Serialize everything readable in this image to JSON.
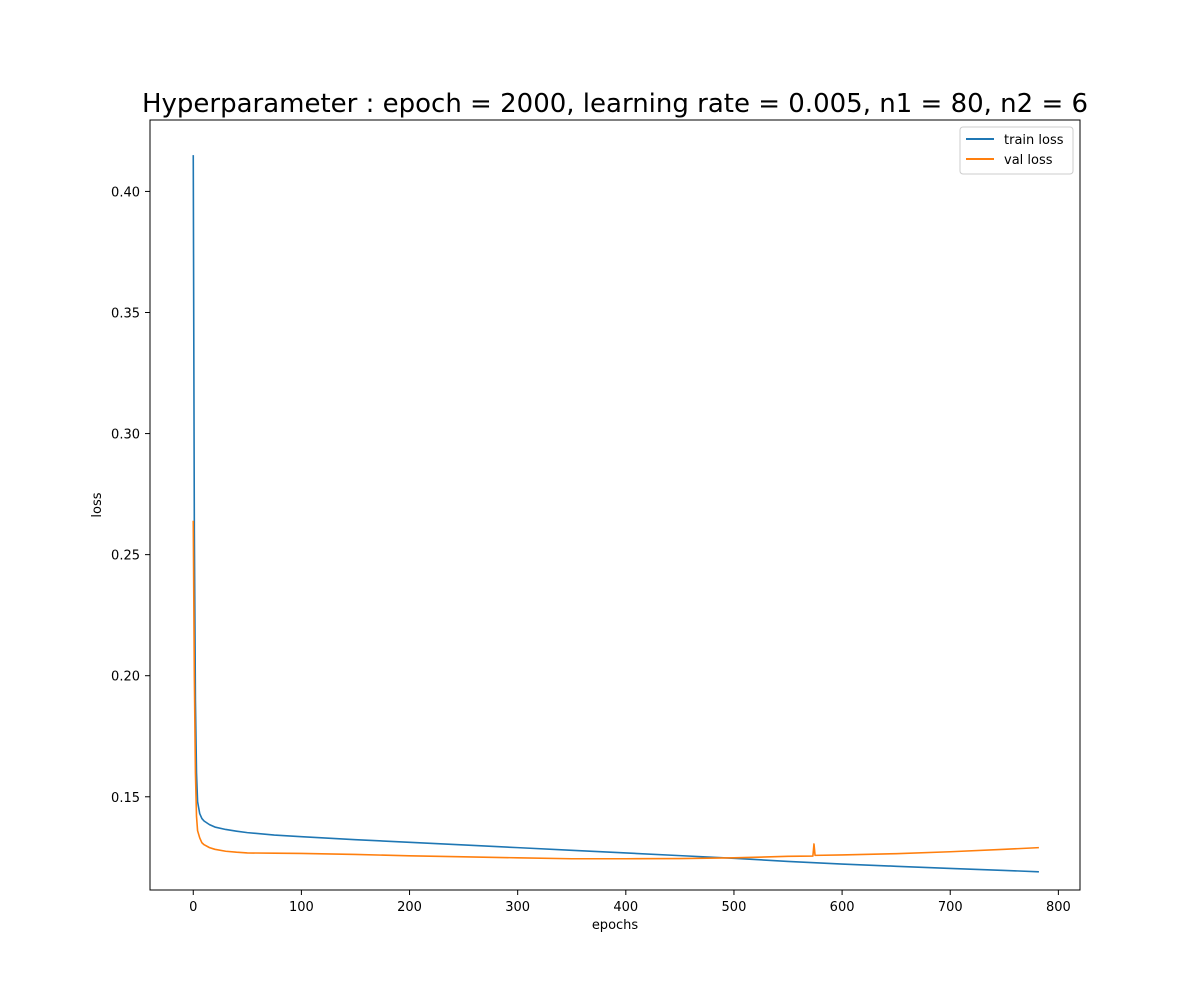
{
  "chart_data": {
    "type": "line",
    "title": "Hyperparameter : epoch = 2000, learning rate = 0.005, n1 = 80, n2 = 6",
    "xlabel": "epochs",
    "ylabel": "loss",
    "xlim": [
      -40,
      820
    ],
    "ylim": [
      0.1115,
      0.4295
    ],
    "xticks": [
      0,
      100,
      200,
      300,
      400,
      500,
      600,
      700,
      800
    ],
    "yticks": [
      0.15,
      0.2,
      0.25,
      0.3,
      0.35,
      0.4
    ],
    "xtick_labels": [
      "0",
      "100",
      "200",
      "300",
      "400",
      "500",
      "600",
      "700",
      "800"
    ],
    "ytick_labels": [
      "0.15",
      "0.20",
      "0.25",
      "0.30",
      "0.35",
      "0.40"
    ],
    "grid": false,
    "legend_position": "upper right",
    "series": [
      {
        "name": "train loss",
        "color": "#1f77b4",
        "x": [
          0,
          1,
          2,
          3,
          4,
          6,
          8,
          10,
          15,
          20,
          30,
          40,
          50,
          75,
          100,
          150,
          200,
          250,
          300,
          350,
          400,
          450,
          500,
          550,
          600,
          650,
          700,
          750,
          782
        ],
        "y": [
          0.415,
          0.26,
          0.19,
          0.16,
          0.148,
          0.143,
          0.141,
          0.14,
          0.1385,
          0.1375,
          0.1365,
          0.1358,
          0.1352,
          0.1342,
          0.1335,
          0.1323,
          0.1312,
          0.1301,
          0.129,
          0.1279,
          0.1268,
          0.1257,
          0.1246,
          0.1233,
          0.1222,
          0.1213,
          0.1204,
          0.1196,
          0.119
        ]
      },
      {
        "name": "val loss",
        "color": "#ff7f0e",
        "x": [
          0,
          1,
          2,
          3,
          4,
          6,
          8,
          10,
          15,
          20,
          30,
          40,
          50,
          75,
          100,
          150,
          200,
          250,
          300,
          350,
          400,
          450,
          500,
          550,
          573,
          574,
          575,
          600,
          650,
          700,
          750,
          782
        ],
        "y": [
          0.264,
          0.2,
          0.16,
          0.142,
          0.136,
          0.133,
          0.131,
          0.1302,
          0.129,
          0.1283,
          0.1275,
          0.1271,
          0.1268,
          0.1267,
          0.1266,
          0.1262,
          0.1256,
          0.1252,
          0.1248,
          0.1244,
          0.1244,
          0.1245,
          0.1248,
          0.1254,
          0.1255,
          0.1305,
          0.1258,
          0.126,
          0.1265,
          0.1273,
          0.1283,
          0.129
        ]
      }
    ]
  }
}
